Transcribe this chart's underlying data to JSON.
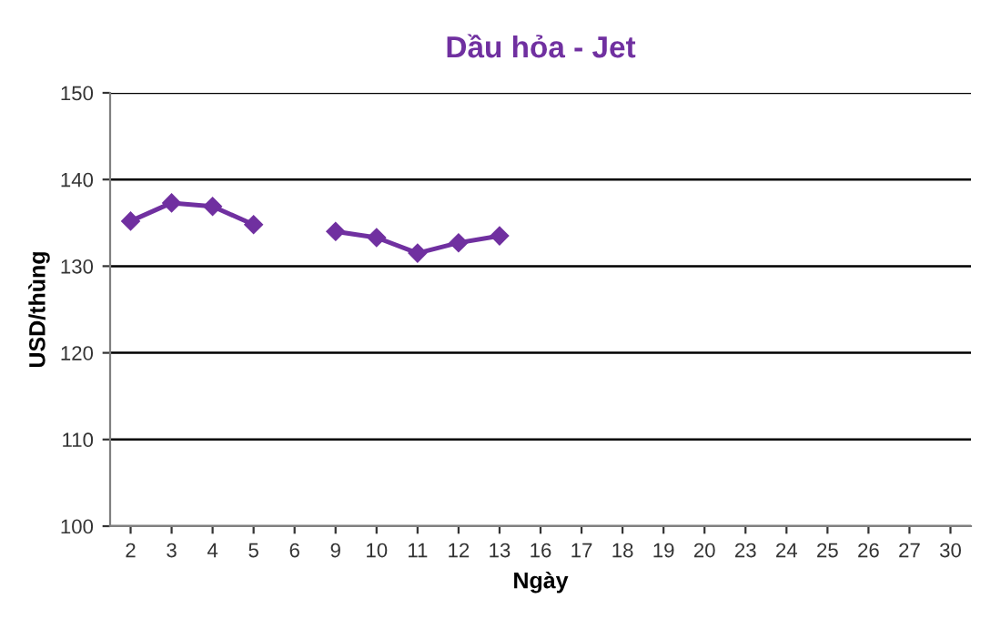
{
  "chart_data": {
    "type": "line",
    "title": "Dầu hỏa - Jet",
    "xlabel": "Ngày",
    "ylabel": "USD/thùng",
    "categories": [
      "2",
      "3",
      "4",
      "5",
      "6",
      "9",
      "10",
      "11",
      "12",
      "13",
      "16",
      "17",
      "18",
      "19",
      "20",
      "23",
      "24",
      "25",
      "26",
      "27",
      "30"
    ],
    "series": [
      {
        "color": "#7030a0",
        "values": [
          135.2,
          137.3,
          136.9,
          134.8,
          null,
          134.0,
          133.3,
          131.5,
          132.7,
          133.5,
          null,
          null,
          null,
          null,
          null,
          null,
          null,
          null,
          null,
          null,
          null
        ]
      }
    ],
    "ylim": [
      100,
      150
    ],
    "yticks": [
      100,
      110,
      120,
      130,
      140,
      150
    ],
    "grid": "y",
    "marker": "diamond",
    "line_style": "solid",
    "legend": false
  }
}
